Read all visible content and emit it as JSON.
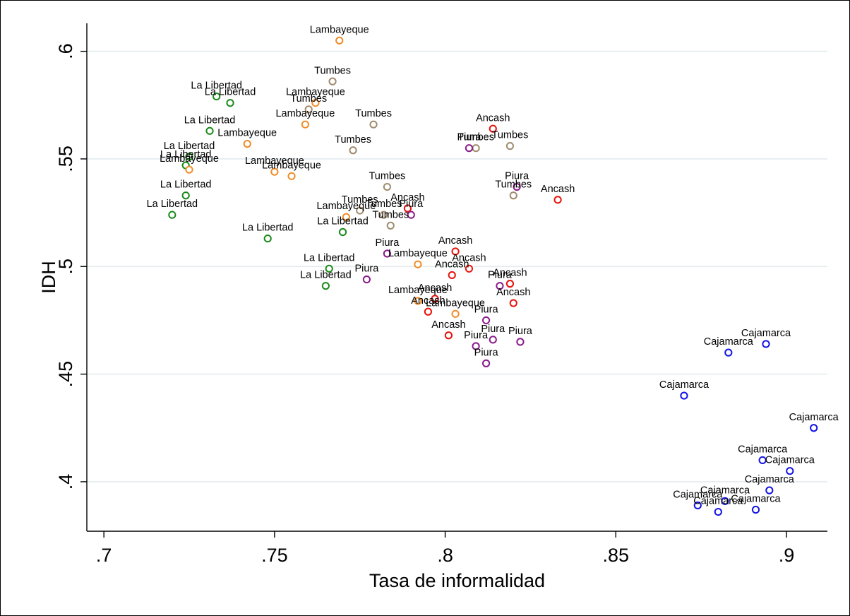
{
  "chart_data": {
    "type": "scatter",
    "xlabel": "Tasa de informalidad",
    "ylabel": "IDH",
    "xlim": [
      0.695,
      0.912
    ],
    "ylim": [
      0.377,
      0.613
    ],
    "x_ticks": [
      {
        "value": 0.7,
        "label": ".7"
      },
      {
        "value": 0.75,
        "label": ".75"
      },
      {
        "value": 0.8,
        "label": ".8"
      },
      {
        "value": 0.85,
        "label": ".85"
      },
      {
        "value": 0.9,
        "label": ".9"
      }
    ],
    "y_ticks": [
      {
        "value": 0.4,
        "label": ".4"
      },
      {
        "value": 0.45,
        "label": ".45"
      },
      {
        "value": 0.5,
        "label": ".5"
      },
      {
        "value": 0.55,
        "label": ".55"
      },
      {
        "value": 0.6,
        "label": ".6"
      }
    ],
    "grid": "horizontal",
    "legend": "none",
    "marker": "hollow-circle",
    "series": [
      {
        "name": "La Libertad",
        "color": "#1a8a1a",
        "points": [
          {
            "x": 0.733,
            "y": 0.579,
            "label": "La Libertad"
          },
          {
            "x": 0.737,
            "y": 0.576,
            "label": "La Libertad"
          },
          {
            "x": 0.731,
            "y": 0.563,
            "label": "La Libertad"
          },
          {
            "x": 0.725,
            "y": 0.551,
            "label": "La Libertad"
          },
          {
            "x": 0.724,
            "y": 0.547,
            "label": "La Libertad"
          },
          {
            "x": 0.724,
            "y": 0.533,
            "label": "La Libertad"
          },
          {
            "x": 0.72,
            "y": 0.524,
            "label": "La Libertad"
          },
          {
            "x": 0.748,
            "y": 0.513,
            "label": "La Libertad"
          },
          {
            "x": 0.77,
            "y": 0.516,
            "label": "La Libertad"
          },
          {
            "x": 0.766,
            "y": 0.499,
            "label": "La Libertad"
          },
          {
            "x": 0.765,
            "y": 0.491,
            "label": "La Libertad"
          }
        ]
      },
      {
        "name": "Lambayeque",
        "color": "#f28c28",
        "points": [
          {
            "x": 0.769,
            "y": 0.605,
            "label": "Lambayeque"
          },
          {
            "x": 0.762,
            "y": 0.576,
            "label": "Lambayeque"
          },
          {
            "x": 0.759,
            "y": 0.566,
            "label": "Lambayeque"
          },
          {
            "x": 0.742,
            "y": 0.557,
            "label": "Lambayeque"
          },
          {
            "x": 0.725,
            "y": 0.545,
            "label": "Lambayeque"
          },
          {
            "x": 0.75,
            "y": 0.544,
            "label": "Lambayeque"
          },
          {
            "x": 0.755,
            "y": 0.542,
            "label": "Lambayeque"
          },
          {
            "x": 0.771,
            "y": 0.523,
            "label": "Lambayeque"
          },
          {
            "x": 0.792,
            "y": 0.501,
            "label": "Lambayeque"
          },
          {
            "x": 0.792,
            "y": 0.484,
            "label": "Lambayeque"
          },
          {
            "x": 0.803,
            "y": 0.478,
            "label": "Lambayeque"
          }
        ]
      },
      {
        "name": "Tumbes",
        "color": "#a08c6e",
        "points": [
          {
            "x": 0.767,
            "y": 0.586,
            "label": "Tumbes"
          },
          {
            "x": 0.76,
            "y": 0.573,
            "label": "Tumbes"
          },
          {
            "x": 0.779,
            "y": 0.566,
            "label": "Tumbes"
          },
          {
            "x": 0.773,
            "y": 0.554,
            "label": "Tumbes"
          },
          {
            "x": 0.809,
            "y": 0.555,
            "label": "Tumbes"
          },
          {
            "x": 0.819,
            "y": 0.556,
            "label": "Tumbes"
          },
          {
            "x": 0.783,
            "y": 0.537,
            "label": "Tumbes"
          },
          {
            "x": 0.82,
            "y": 0.533,
            "label": "Tumbes"
          },
          {
            "x": 0.775,
            "y": 0.526,
            "label": "Tumbes"
          },
          {
            "x": 0.782,
            "y": 0.524,
            "label": "Tumbes"
          },
          {
            "x": 0.784,
            "y": 0.519,
            "label": "Tumbes"
          }
        ]
      },
      {
        "name": "Ancash",
        "color": "#e8120c",
        "points": [
          {
            "x": 0.814,
            "y": 0.564,
            "label": "Ancash"
          },
          {
            "x": 0.833,
            "y": 0.531,
            "label": "Ancash"
          },
          {
            "x": 0.789,
            "y": 0.527,
            "label": "Ancash"
          },
          {
            "x": 0.803,
            "y": 0.507,
            "label": "Ancash"
          },
          {
            "x": 0.807,
            "y": 0.499,
            "label": "Ancash"
          },
          {
            "x": 0.802,
            "y": 0.496,
            "label": "Ancash"
          },
          {
            "x": 0.819,
            "y": 0.492,
            "label": "Ancash"
          },
          {
            "x": 0.797,
            "y": 0.485,
            "label": "Ancash"
          },
          {
            "x": 0.82,
            "y": 0.483,
            "label": "Ancash"
          },
          {
            "x": 0.795,
            "y": 0.479,
            "label": "Ancash"
          },
          {
            "x": 0.801,
            "y": 0.468,
            "label": "Ancash"
          }
        ]
      },
      {
        "name": "Piura",
        "color": "#8a1a8a",
        "points": [
          {
            "x": 0.807,
            "y": 0.555,
            "label": "Piura"
          },
          {
            "x": 0.821,
            "y": 0.537,
            "label": "Piura"
          },
          {
            "x": 0.79,
            "y": 0.524,
            "label": "Piura"
          },
          {
            "x": 0.783,
            "y": 0.506,
            "label": "Piura"
          },
          {
            "x": 0.777,
            "y": 0.494,
            "label": "Piura"
          },
          {
            "x": 0.816,
            "y": 0.491,
            "label": "Piura"
          },
          {
            "x": 0.812,
            "y": 0.475,
            "label": "Piura"
          },
          {
            "x": 0.814,
            "y": 0.466,
            "label": "Piura"
          },
          {
            "x": 0.822,
            "y": 0.465,
            "label": "Piura"
          },
          {
            "x": 0.809,
            "y": 0.463,
            "label": "Piura"
          },
          {
            "x": 0.812,
            "y": 0.455,
            "label": "Piura"
          }
        ]
      },
      {
        "name": "Cajamarca",
        "color": "#1414e6",
        "points": [
          {
            "x": 0.894,
            "y": 0.464,
            "label": "Cajamarca"
          },
          {
            "x": 0.883,
            "y": 0.46,
            "label": "Cajamarca"
          },
          {
            "x": 0.87,
            "y": 0.44,
            "label": "Cajamarca"
          },
          {
            "x": 0.908,
            "y": 0.425,
            "label": "Cajamarca"
          },
          {
            "x": 0.893,
            "y": 0.41,
            "label": "Cajamarca"
          },
          {
            "x": 0.901,
            "y": 0.405,
            "label": "Cajamarca"
          },
          {
            "x": 0.895,
            "y": 0.396,
            "label": "Cajamarca"
          },
          {
            "x": 0.882,
            "y": 0.391,
            "label": "Cajamarca"
          },
          {
            "x": 0.874,
            "y": 0.389,
            "label": "Cajamarca"
          },
          {
            "x": 0.891,
            "y": 0.387,
            "label": "Cajamarca"
          },
          {
            "x": 0.88,
            "y": 0.386,
            "label": "Cajamarca"
          }
        ]
      }
    ]
  }
}
